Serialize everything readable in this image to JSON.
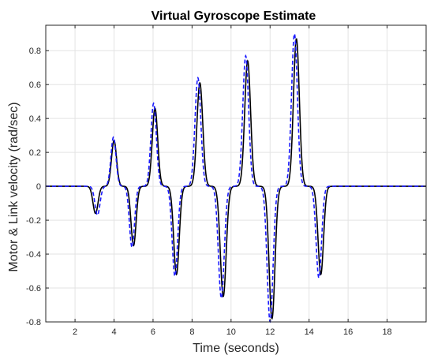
{
  "chart_data": {
    "type": "line",
    "title": "Virtual Gyroscope Estimate",
    "xlabel": "Time (seconds)",
    "ylabel": "Motor & Link velocity (rad/sec)",
    "xlim": [
      0.5,
      20
    ],
    "ylim": [
      -0.8,
      0.95
    ],
    "x_ticks": [
      2,
      4,
      6,
      8,
      10,
      12,
      14,
      16,
      18
    ],
    "y_ticks": [
      -0.8,
      -0.6,
      -0.4,
      -0.2,
      0,
      0.2,
      0.4,
      0.6,
      0.8
    ],
    "y_tick_labels": [
      "-0.8",
      "-0.6",
      "-0.4",
      "-0.2",
      "0",
      "0.2",
      "0.4",
      "0.6",
      "0.8"
    ],
    "grid": true,
    "series": [
      {
        "style": "solid",
        "color": "#000000",
        "peaks": [
          {
            "t": 3.05,
            "a": -0.16,
            "w": 0.13
          },
          {
            "t": 4.0,
            "a": 0.27,
            "w": 0.13
          },
          {
            "t": 5.0,
            "a": -0.35,
            "w": 0.13
          },
          {
            "t": 6.1,
            "a": 0.46,
            "w": 0.14
          },
          {
            "t": 7.2,
            "a": -0.52,
            "w": 0.14
          },
          {
            "t": 8.4,
            "a": 0.61,
            "w": 0.15
          },
          {
            "t": 9.6,
            "a": -0.65,
            "w": 0.15
          },
          {
            "t": 10.85,
            "a": 0.74,
            "w": 0.15
          },
          {
            "t": 12.1,
            "a": -0.78,
            "w": 0.15
          },
          {
            "t": 13.35,
            "a": 0.87,
            "w": 0.15
          },
          {
            "t": 14.6,
            "a": -0.52,
            "w": 0.14
          }
        ]
      },
      {
        "style": "dashed",
        "color": "#1a1aff",
        "peaks": [
          {
            "t": 3.15,
            "a": -0.17,
            "w": 0.13
          },
          {
            "t": 3.97,
            "a": 0.29,
            "w": 0.13
          },
          {
            "t": 4.92,
            "a": -0.36,
            "w": 0.13
          },
          {
            "t": 6.03,
            "a": 0.49,
            "w": 0.14
          },
          {
            "t": 7.12,
            "a": -0.53,
            "w": 0.14
          },
          {
            "t": 8.3,
            "a": 0.64,
            "w": 0.15
          },
          {
            "t": 9.5,
            "a": -0.66,
            "w": 0.15
          },
          {
            "t": 10.75,
            "a": 0.77,
            "w": 0.15
          },
          {
            "t": 12.0,
            "a": -0.8,
            "w": 0.15
          },
          {
            "t": 13.25,
            "a": 0.9,
            "w": 0.15
          },
          {
            "t": 14.5,
            "a": -0.54,
            "w": 0.14
          }
        ]
      }
    ]
  }
}
